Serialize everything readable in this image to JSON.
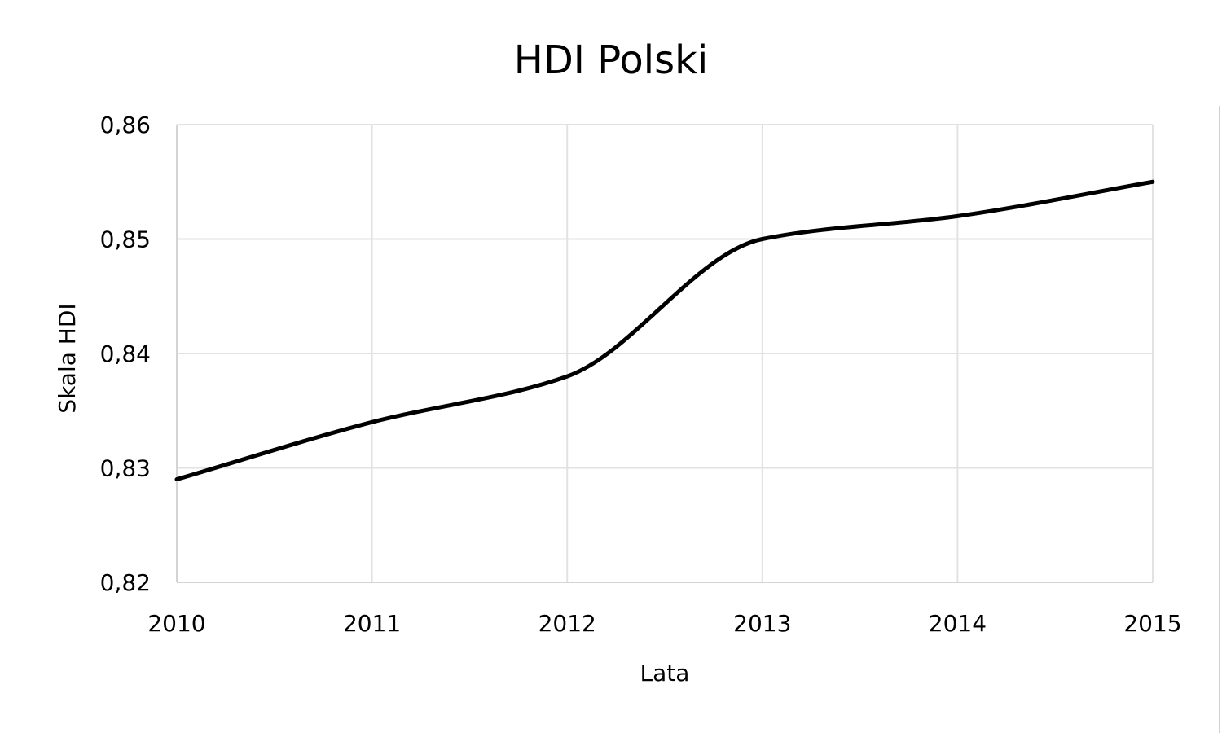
{
  "chart_data": {
    "type": "line",
    "title": "HDI Polski",
    "xlabel": "Lata",
    "ylabel": "Skala HDI",
    "categories": [
      "2010",
      "2011",
      "2012",
      "2013",
      "2014",
      "2015"
    ],
    "x": [
      2010,
      2011,
      2012,
      2013,
      2014,
      2015
    ],
    "y_ticks": [
      "0,82",
      "0,83",
      "0,84",
      "0,85",
      "0,86"
    ],
    "y_tick_values": [
      0.82,
      0.83,
      0.84,
      0.85,
      0.86
    ],
    "ylim": [
      0.82,
      0.86
    ],
    "xlim": [
      2010,
      2015
    ],
    "grid": true,
    "smooth": true,
    "legend": "none",
    "series": [
      {
        "values": [
          0.829,
          0.834,
          0.838,
          0.85,
          0.852,
          0.855
        ],
        "color": "#000000"
      }
    ]
  }
}
